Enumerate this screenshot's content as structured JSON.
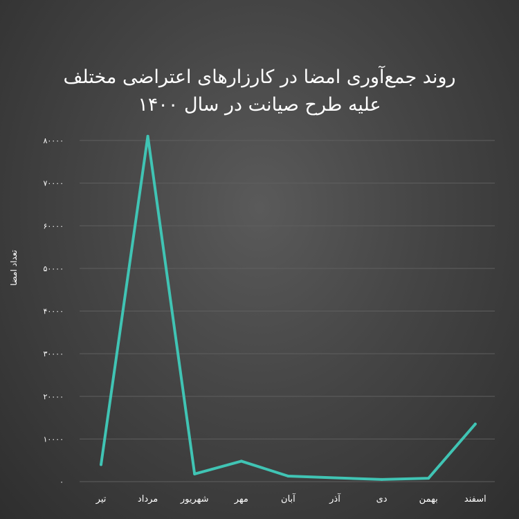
{
  "chart_data": {
    "type": "line",
    "title_lines": [
      "روند جمع‌آوری امضا در کارزارهای اعتراضی مختلف",
      "علیه طرح صیانت در سال ۱۴۰۰"
    ],
    "xlabel": "",
    "ylabel": "تعداد امضا",
    "categories": [
      "تیر",
      "مرداد",
      "شهریور",
      "مهر",
      "آبان",
      "آذر",
      "دی",
      "بهمن",
      "اسفند"
    ],
    "values": [
      4000,
      81000,
      1800,
      4800,
      1300,
      900,
      500,
      800,
      13500
    ],
    "y_ticks": [
      0,
      10000,
      20000,
      30000,
      40000,
      50000,
      60000,
      70000,
      80000
    ],
    "y_tick_labels": [
      "۰",
      "۱۰۰۰۰",
      "۲۰۰۰۰",
      "۳۰۰۰۰",
      "۴۰۰۰۰",
      "۵۰۰۰۰",
      "۶۰۰۰۰",
      "۷۰۰۰۰",
      "۸۰۰۰۰"
    ],
    "ylim": [
      0,
      80000
    ],
    "grid": true,
    "line_color": "#40c4b4",
    "grid_color": "#5f5f5f"
  }
}
